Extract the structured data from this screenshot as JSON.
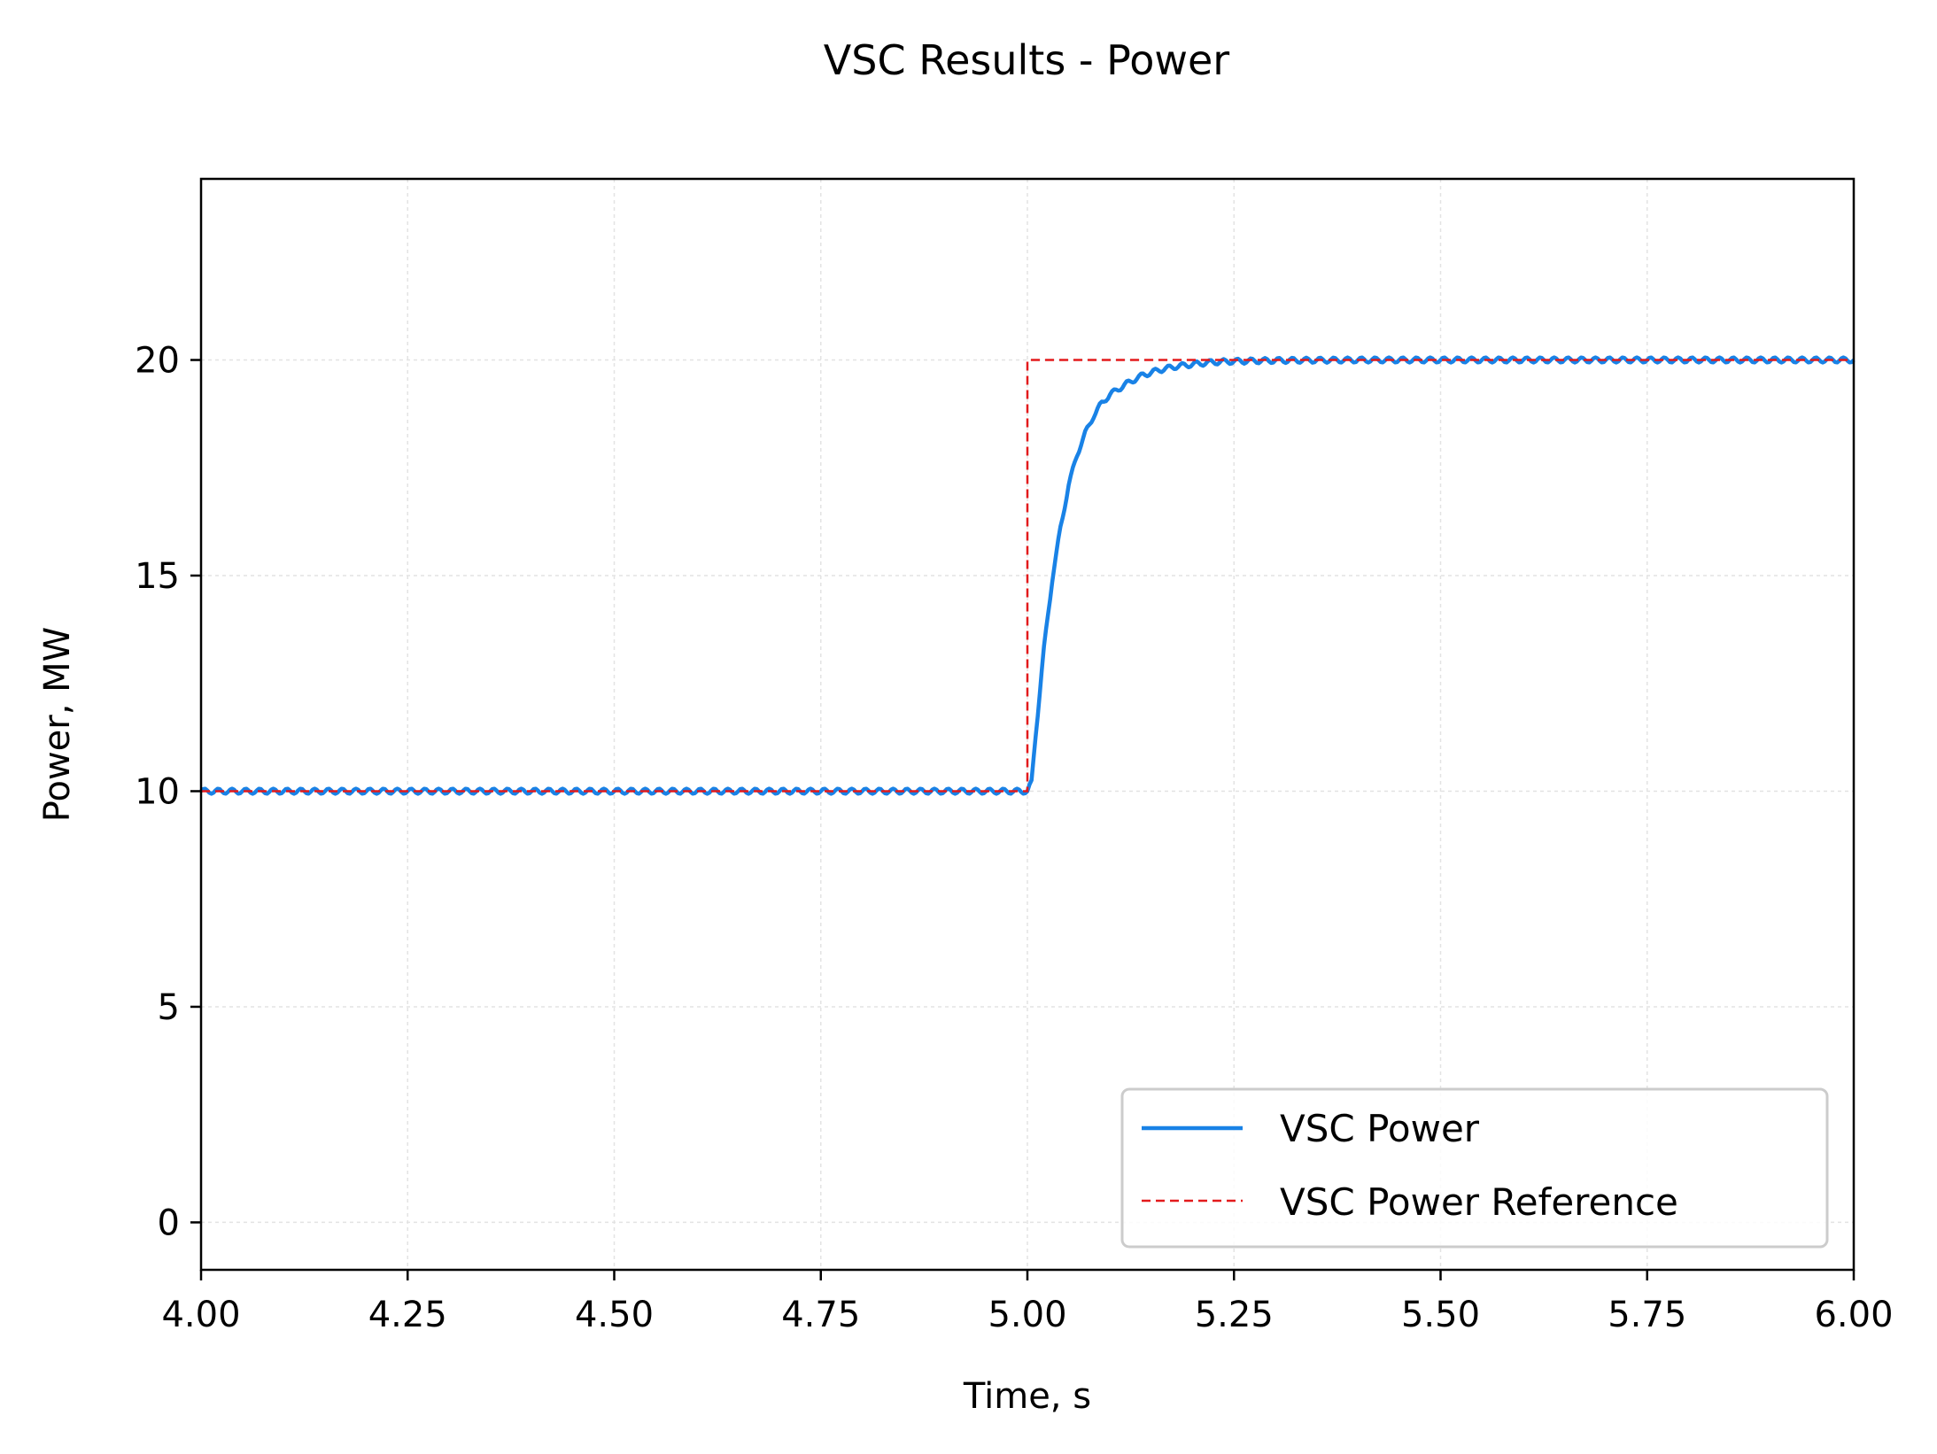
{
  "chart_data": {
    "type": "line",
    "title": "VSC Results - Power",
    "xlabel": "Time, s",
    "ylabel": "Power, MW",
    "xlim": [
      4.0,
      6.0
    ],
    "ylim": [
      -1.1,
      24.2
    ],
    "x_ticks": [
      4.0,
      4.25,
      4.5,
      4.75,
      5.0,
      5.25,
      5.5,
      5.75,
      6.0
    ],
    "x_tick_labels": [
      "4.00",
      "4.25",
      "4.50",
      "4.75",
      "5.00",
      "5.25",
      "5.50",
      "5.75",
      "6.00"
    ],
    "y_ticks": [
      0,
      5,
      10,
      15,
      20
    ],
    "y_tick_labels": [
      "0",
      "5",
      "10",
      "15",
      "20"
    ],
    "grid": true,
    "legend_position": "lower-right",
    "series": [
      {
        "name": "VSC Power",
        "color": "#1982e6",
        "style": "solid",
        "x": [
          4.0,
          4.5,
          4.95,
          5.0,
          5.005,
          5.01,
          5.02,
          5.03,
          5.04,
          5.05,
          5.06,
          5.07,
          5.08,
          5.09,
          5.1,
          5.12,
          5.14,
          5.16,
          5.18,
          5.2,
          5.225,
          5.25,
          5.3,
          5.4,
          5.6,
          5.8,
          6.0
        ],
        "y": [
          10.0,
          10.0,
          10.0,
          10.0,
          10.2,
          11.3,
          13.3,
          14.9,
          16.1,
          17.1,
          17.8,
          18.3,
          18.7,
          19.0,
          19.2,
          19.45,
          19.65,
          19.77,
          19.85,
          19.9,
          19.95,
          19.97,
          19.99,
          20.0,
          20.0,
          20.0,
          20.0
        ]
      },
      {
        "name": "VSC Power Reference",
        "color": "#e31a1c",
        "style": "dashed",
        "x": [
          4.0,
          5.0,
          5.0,
          6.0
        ],
        "y": [
          10,
          10,
          20,
          20
        ]
      }
    ]
  }
}
